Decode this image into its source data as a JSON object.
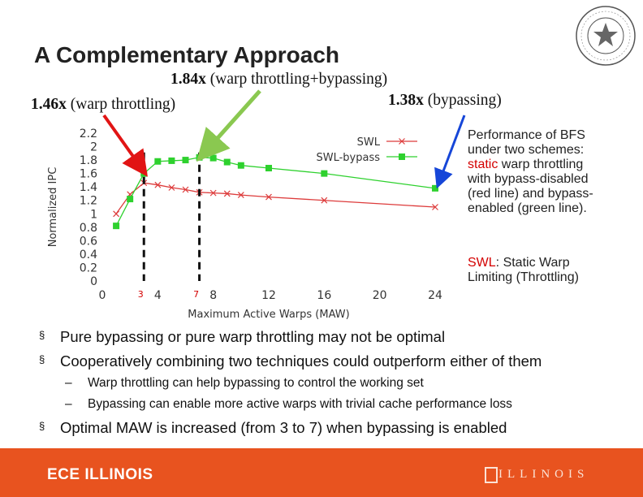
{
  "slide": {
    "title": "A Complementary Approach",
    "annotations": {
      "both_value": "1.84x",
      "both_text": " (warp throttling+bypassing)",
      "throttle_value": "1.46x",
      "throttle_text": " (warp throttling)",
      "bypass_value": "1.38x",
      "bypass_text": " (bypassing)"
    },
    "side_note": {
      "line1": "Performance of BFS",
      "line2": "under two schemes:",
      "line3_red": "static",
      "line3_rest": " warp throttling",
      "line4": "with bypass-disabled",
      "line5": "(red line) and bypass-",
      "line6": "enabled (green line)."
    },
    "swl_note": {
      "label_red": "SWL",
      "text1": ": Static Warp",
      "text2": "Limiting (Throttling)"
    },
    "bullets": [
      "Pure bypassing or pure warp throttling may not be optimal",
      "Cooperatively combining two techniques could outperform either of them"
    ],
    "sub_bullets": [
      "Warp throttling can help bypassing to control the working set",
      "Bypassing can enable more active warps with trivial cache performance loss"
    ],
    "final_bullet": "Optimal MAW is increased (from 3 to 7) when bypassing is enabled",
    "bullet_symbol": "§",
    "dash_symbol": "–",
    "footer": {
      "left": "ECE ILLINOIS",
      "right": "ILLINOIS"
    }
  },
  "colors": {
    "swl": "#dd3b3b",
    "bypass": "#2ed12e",
    "arrow_red": "#e11414",
    "arrow_green": "#8ac850",
    "arrow_blue": "#1646d8",
    "footer": "#e8531f"
  },
  "chart_data": {
    "type": "line",
    "xlabel": "Maximum Active Warps (MAW)",
    "ylabel": "Normalized IPC",
    "xlim": [
      0,
      24
    ],
    "ylim": [
      0,
      2.2
    ],
    "xticks": [
      0,
      4,
      8,
      12,
      16,
      20,
      24
    ],
    "yticks": [
      0,
      0.2,
      0.4,
      0.6,
      0.8,
      1,
      1.2,
      1.4,
      1.6,
      1.8,
      2,
      2.2
    ],
    "markers": [
      {
        "x": 3,
        "label": "3"
      },
      {
        "x": 7,
        "label": "7"
      }
    ],
    "series": [
      {
        "name": "SWL",
        "marker": "x",
        "x": [
          1,
          2,
          3,
          4,
          5,
          6,
          7,
          8,
          9,
          10,
          12,
          16,
          24
        ],
        "y": [
          1.0,
          1.29,
          1.46,
          1.43,
          1.39,
          1.36,
          1.32,
          1.31,
          1.3,
          1.28,
          1.25,
          1.2,
          1.1
        ]
      },
      {
        "name": "SWL-bypass",
        "marker": "square",
        "x": [
          1,
          2,
          3,
          4,
          5,
          6,
          7,
          8,
          9,
          10,
          12,
          16,
          24
        ],
        "y": [
          0.82,
          1.22,
          1.6,
          1.78,
          1.79,
          1.8,
          1.84,
          1.83,
          1.77,
          1.72,
          1.68,
          1.6,
          1.38
        ]
      }
    ],
    "legend": "top-right"
  }
}
